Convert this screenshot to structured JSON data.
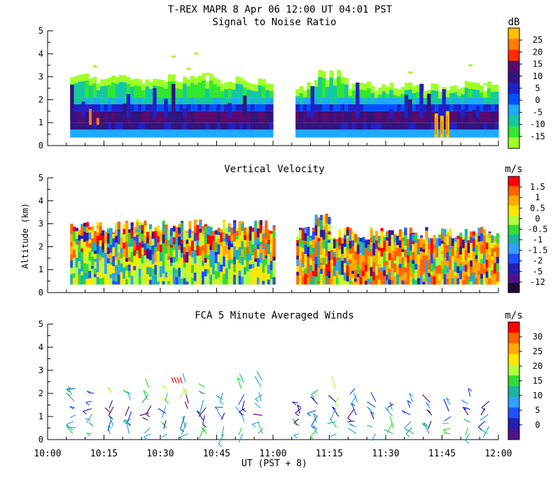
{
  "title": "T-REX  MAPR  8 Apr 06  12:00 UT  04:01  PST",
  "chart_data": [
    {
      "type": "heatmap",
      "title": "Signal to Noise Ratio",
      "unit": "dB",
      "ylim": [
        0,
        5
      ],
      "yticks": [
        "0",
        "1",
        "2",
        "3",
        "4",
        "5"
      ],
      "colorbar": {
        "labels": [
          "25",
          "20",
          "15",
          "10",
          "5",
          "0",
          "-5",
          "-10",
          "-15"
        ],
        "colors": [
          "#ffc000",
          "#ff7a00",
          "#ff2a00",
          "#5a0a6e",
          "#32147e",
          "#2020c8",
          "#0050ff",
          "#1eaaff",
          "#14c8a0",
          "#32e632",
          "#a0ff28"
        ]
      },
      "note": "Layered SNR: ~0.4-1.5 km strong (5-15 dB), 1.5-2.2 km moderate, 2.2-3.2 km weak; local maxima ~25 dB near 10:15 and 11:48 at ~1 km"
    },
    {
      "type": "heatmap",
      "title": "Vertical Velocity",
      "unit": "m/s",
      "ylabel": "Altitude (km)",
      "ylim": [
        0,
        5
      ],
      "yticks": [
        "0",
        "1",
        "2",
        "3",
        "4",
        "5"
      ],
      "colorbar": {
        "labels": [
          "1.5",
          "1",
          "0.5",
          "0",
          "-0.5",
          "-1",
          "-1.5",
          "-2",
          "-5",
          "-12"
        ],
        "colors": [
          "#ff0000",
          "#ff6400",
          "#ffaa00",
          "#ffe600",
          "#b4ff3c",
          "#32dc32",
          "#1eb4a0",
          "#32a0ff",
          "#1e50ff",
          "#2020b4",
          "#50128c",
          "#1e0a32"
        ]
      }
    },
    {
      "type": "scatter",
      "title": "FCA 5 Minute Averaged Winds",
      "unit": "m/s",
      "ylim": [
        0,
        5
      ],
      "yticks": [
        "0",
        "1",
        "2",
        "3",
        "4",
        "5"
      ],
      "colorbar": {
        "labels": [
          "30",
          "25",
          "20",
          "15",
          "10",
          "5",
          "0"
        ],
        "colors": [
          "#ff0000",
          "#ff6400",
          "#ffaa00",
          "#ffe600",
          "#b4ff3c",
          "#32dc32",
          "#1eb4a0",
          "#32a0ff",
          "#1e50ff",
          "#2020b4",
          "#50128c"
        ]
      },
      "note": "Wind barbs every 5 min from 10:05 to 12:00 UT, altitudes ~0.2-2.9 km, mostly 5-15 m/s"
    }
  ],
  "x_axis": {
    "label": "UT  (PST + 8)",
    "ticks": [
      "10:00",
      "10:15",
      "10:30",
      "10:45",
      "11:00",
      "11:15",
      "11:30",
      "11:45",
      "12:00"
    ],
    "range_minutes": [
      0,
      120
    ],
    "data_start_min": 6,
    "gap_min": [
      60,
      66
    ]
  }
}
